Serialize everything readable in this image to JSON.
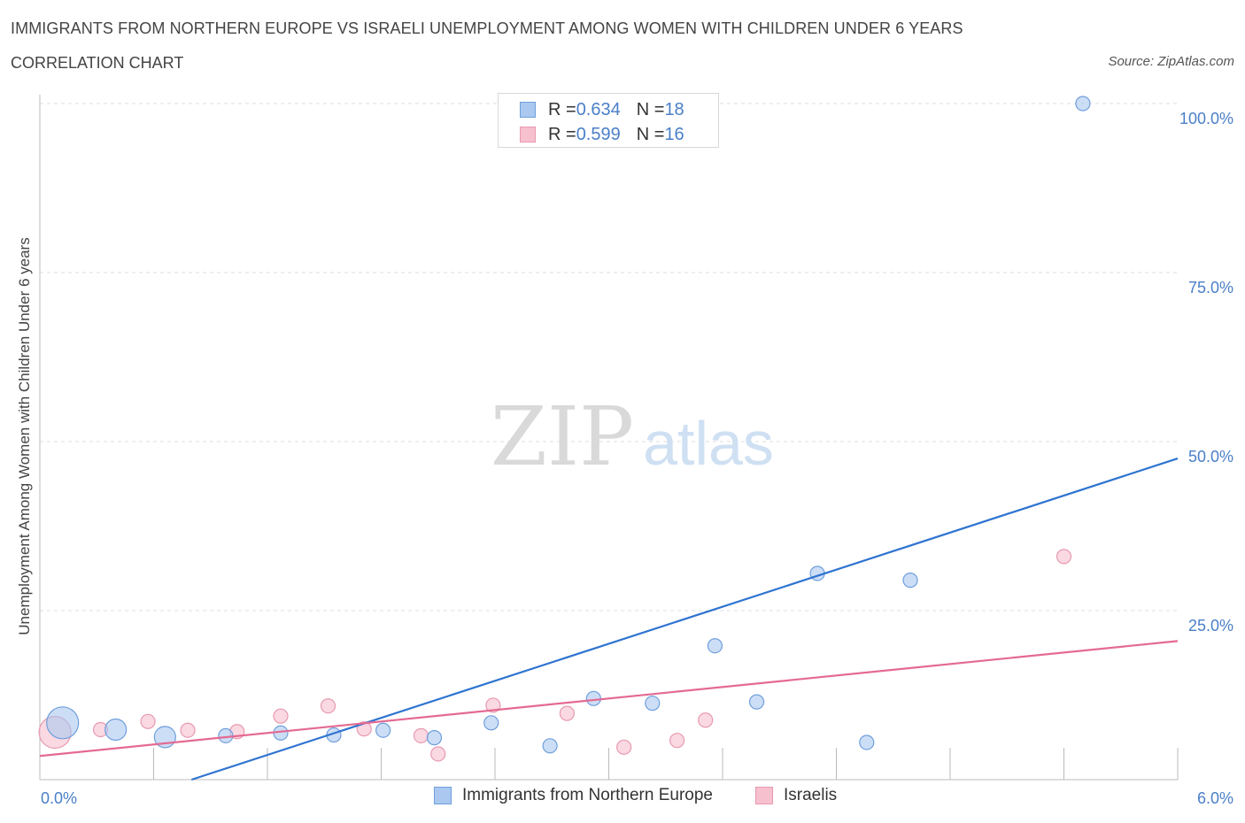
{
  "header": {
    "title": "IMMIGRANTS FROM NORTHERN EUROPE VS ISRAELI UNEMPLOYMENT AMONG WOMEN WITH CHILDREN UNDER 6 YEARS",
    "subtitle": "CORRELATION CHART",
    "source": "Source: ZipAtlas.com"
  },
  "watermark": {
    "zip": "ZIP",
    "atlas": "atlas"
  },
  "legend": {
    "rows": [
      {
        "r_label": "R = ",
        "r_value": "0.634",
        "n_label": "N = ",
        "n_value": "18"
      },
      {
        "r_label": "R = ",
        "r_value": "0.599",
        "n_label": "N = ",
        "n_value": "16"
      }
    ]
  },
  "colors": {
    "blue_fill": "#aac8f0",
    "blue_stroke": "#6f9fdc",
    "blue_line": "#2f74d0",
    "pink_fill": "#f7c0cf",
    "pink_stroke": "#e899b0",
    "pink_line": "#e46a92",
    "tick_label": "#4a7fc8",
    "grid": "#dddddd"
  },
  "chart_data": {
    "type": "scatter",
    "title": "IMMIGRANTS FROM NORTHERN EUROPE VS ISRAELI UNEMPLOYMENT AMONG WOMEN WITH CHILDREN UNDER 6 YEARS",
    "xlabel": "",
    "ylabel": "Unemployment Among Women with Children Under 6 years",
    "xlim": [
      0,
      6
    ],
    "ylim": [
      0,
      100
    ],
    "x_tick_labels": [
      "0.0%",
      "6.0%"
    ],
    "y_tick_labels": [
      "100.0%",
      "75.0%",
      "50.0%",
      "25.0%"
    ],
    "y_tick_values": [
      100,
      75,
      50,
      25
    ],
    "grid": true,
    "legend_position": "top-center",
    "series": [
      {
        "name": "Immigrants from Northern Europe",
        "color": "blue",
        "points": [
          {
            "x": 0.12,
            "y": 8.4,
            "size": "large"
          },
          {
            "x": 0.4,
            "y": 7.4,
            "size": "medium"
          },
          {
            "x": 0.66,
            "y": 6.3,
            "size": "medium"
          },
          {
            "x": 0.98,
            "y": 6.5,
            "size": "small"
          },
          {
            "x": 1.27,
            "y": 6.9,
            "size": "small"
          },
          {
            "x": 1.55,
            "y": 6.6,
            "size": "small"
          },
          {
            "x": 1.81,
            "y": 7.3,
            "size": "small"
          },
          {
            "x": 2.08,
            "y": 6.2,
            "size": "small"
          },
          {
            "x": 2.38,
            "y": 8.4,
            "size": "small"
          },
          {
            "x": 2.69,
            "y": 5.0,
            "size": "small"
          },
          {
            "x": 2.92,
            "y": 12.0,
            "size": "small"
          },
          {
            "x": 3.23,
            "y": 11.3,
            "size": "small"
          },
          {
            "x": 3.56,
            "y": 19.8,
            "size": "small"
          },
          {
            "x": 3.78,
            "y": 11.5,
            "size": "small"
          },
          {
            "x": 4.1,
            "y": 30.5,
            "size": "small"
          },
          {
            "x": 4.36,
            "y": 5.5,
            "size": "small"
          },
          {
            "x": 4.59,
            "y": 29.5,
            "size": "small"
          },
          {
            "x": 5.5,
            "y": 100.0,
            "size": "small"
          }
        ],
        "trend": {
          "x": [
            0.8,
            6.0
          ],
          "y": [
            0.0,
            47.5
          ]
        }
      },
      {
        "name": "Israelis",
        "color": "pink",
        "points": [
          {
            "x": 0.08,
            "y": 7.0,
            "size": "large"
          },
          {
            "x": 0.32,
            "y": 7.4,
            "size": "small"
          },
          {
            "x": 0.57,
            "y": 8.6,
            "size": "small"
          },
          {
            "x": 0.78,
            "y": 7.3,
            "size": "small"
          },
          {
            "x": 1.04,
            "y": 7.1,
            "size": "small"
          },
          {
            "x": 1.27,
            "y": 9.4,
            "size": "small"
          },
          {
            "x": 1.52,
            "y": 10.9,
            "size": "small"
          },
          {
            "x": 1.71,
            "y": 7.5,
            "size": "small"
          },
          {
            "x": 2.01,
            "y": 6.5,
            "size": "small"
          },
          {
            "x": 2.1,
            "y": 3.8,
            "size": "small"
          },
          {
            "x": 2.39,
            "y": 11.0,
            "size": "small"
          },
          {
            "x": 2.78,
            "y": 9.8,
            "size": "small"
          },
          {
            "x": 3.08,
            "y": 4.8,
            "size": "small"
          },
          {
            "x": 3.36,
            "y": 5.8,
            "size": "small"
          },
          {
            "x": 3.51,
            "y": 8.8,
            "size": "small"
          },
          {
            "x": 5.4,
            "y": 33.0,
            "size": "small"
          }
        ],
        "trend": {
          "x": [
            0.0,
            6.0
          ],
          "y": [
            3.5,
            20.5
          ]
        }
      }
    ]
  },
  "bottom_legend": {
    "items": [
      {
        "label": "Immigrants from Northern Europe"
      },
      {
        "label": "Israelis"
      }
    ]
  }
}
